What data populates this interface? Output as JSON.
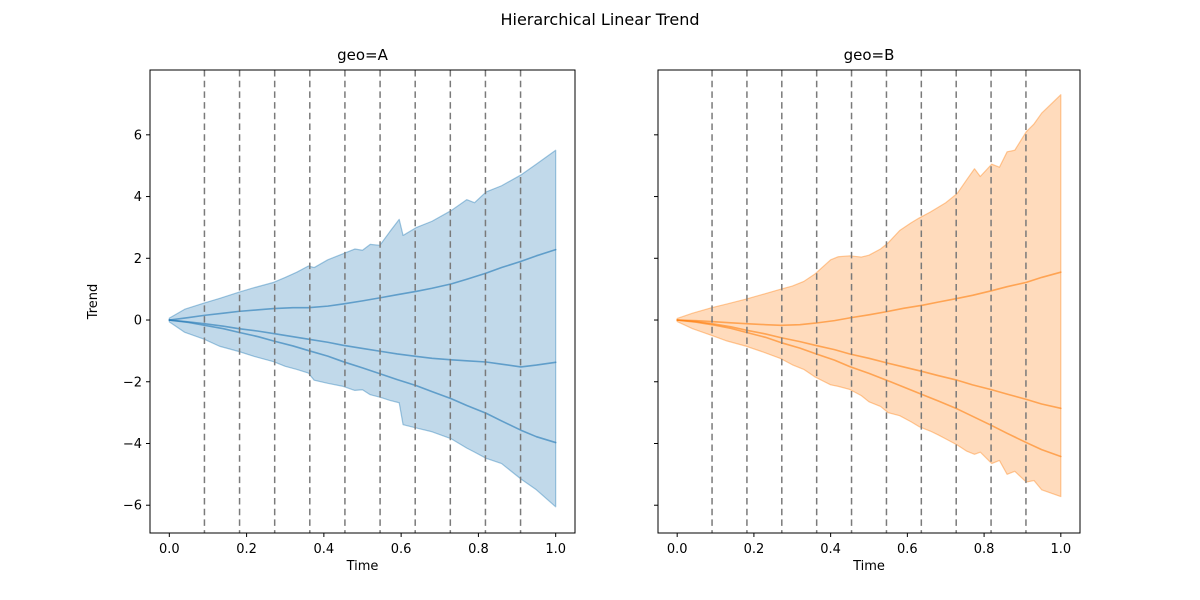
{
  "figure": {
    "title": "Hierarchical Linear Trend",
    "background": "#ffffff"
  },
  "chart_data": [
    {
      "type": "area",
      "title": "geo=A",
      "xlabel": "Time",
      "ylabel": "Trend",
      "series_color": "#1f77b4",
      "band_fill_alpha": 0.28,
      "band_edge_alpha": 0.4,
      "line_alpha": 0.6,
      "grid": {
        "style": "dashed-vertical",
        "color": "#7a7a7a"
      },
      "xlim": [
        -0.05,
        1.05
      ],
      "ylim": [
        -6.9,
        8.1
      ],
      "xticks": [
        0.0,
        0.2,
        0.4,
        0.6,
        0.8,
        1.0
      ],
      "xtick_labels": [
        "0.0",
        "0.2",
        "0.4",
        "0.6",
        "0.8",
        "1.0"
      ],
      "yticks": [
        -6,
        -4,
        -2,
        0,
        2,
        4,
        6
      ],
      "ytick_labels": [
        "−6",
        "−4",
        "−2",
        "0",
        "2",
        "4",
        "6"
      ],
      "show_ytick_labels": true,
      "changepoints": [
        0.0909,
        0.1818,
        0.2727,
        0.3636,
        0.4545,
        0.5455,
        0.6364,
        0.7273,
        0.8182,
        0.9091
      ],
      "band": {
        "t": [
          0,
          0.04,
          0.09,
          0.13,
          0.18,
          0.22,
          0.27,
          0.3,
          0.33,
          0.36,
          0.375,
          0.41,
          0.45,
          0.48,
          0.5,
          0.52,
          0.545,
          0.57,
          0.595,
          0.605,
          0.64,
          0.68,
          0.73,
          0.77,
          0.79,
          0.82,
          0.86,
          0.91,
          0.95,
          1.0
        ],
        "upper": [
          0.06,
          0.35,
          0.55,
          0.7,
          0.9,
          1.05,
          1.22,
          1.38,
          1.55,
          1.75,
          1.7,
          1.95,
          2.15,
          2.3,
          2.26,
          2.45,
          2.42,
          2.85,
          3.26,
          2.74,
          3.0,
          3.2,
          3.55,
          3.9,
          3.8,
          4.15,
          4.35,
          4.7,
          5.05,
          5.5
        ],
        "lower": [
          -0.06,
          -0.4,
          -0.62,
          -0.85,
          -1.02,
          -1.18,
          -1.35,
          -1.5,
          -1.6,
          -1.72,
          -1.95,
          -2.05,
          -2.15,
          -2.28,
          -2.26,
          -2.42,
          -2.5,
          -2.6,
          -2.68,
          -3.39,
          -3.5,
          -3.62,
          -3.85,
          -4.15,
          -4.28,
          -4.48,
          -4.65,
          -5.15,
          -5.5,
          -6.05
        ]
      },
      "lines": [
        {
          "name": "draw-1",
          "t": [
            0,
            0.05,
            0.09,
            0.14,
            0.18,
            0.23,
            0.27,
            0.32,
            0.36,
            0.41,
            0.45,
            0.5,
            0.55,
            0.59,
            0.64,
            0.68,
            0.73,
            0.77,
            0.82,
            0.86,
            0.91,
            0.95,
            1.0
          ],
          "y": [
            0,
            0.08,
            0.15,
            0.22,
            0.28,
            0.33,
            0.37,
            0.4,
            0.4,
            0.45,
            0.52,
            0.62,
            0.73,
            0.82,
            0.93,
            1.03,
            1.17,
            1.32,
            1.52,
            1.7,
            1.9,
            2.08,
            2.28
          ]
        },
        {
          "name": "draw-2",
          "t": [
            0,
            0.05,
            0.09,
            0.14,
            0.18,
            0.23,
            0.27,
            0.32,
            0.36,
            0.41,
            0.45,
            0.5,
            0.55,
            0.59,
            0.64,
            0.68,
            0.73,
            0.77,
            0.82,
            0.86,
            0.91,
            0.95,
            1.0
          ],
          "y": [
            0,
            -0.06,
            -0.12,
            -0.2,
            -0.28,
            -0.36,
            -0.44,
            -0.54,
            -0.62,
            -0.72,
            -0.82,
            -0.92,
            -1.02,
            -1.1,
            -1.18,
            -1.24,
            -1.29,
            -1.32,
            -1.36,
            -1.43,
            -1.52,
            -1.46,
            -1.37
          ]
        },
        {
          "name": "draw-3",
          "t": [
            0,
            0.05,
            0.09,
            0.14,
            0.18,
            0.23,
            0.27,
            0.32,
            0.36,
            0.41,
            0.45,
            0.5,
            0.55,
            0.59,
            0.64,
            0.68,
            0.73,
            0.77,
            0.82,
            0.86,
            0.91,
            0.95,
            1.0
          ],
          "y": [
            0,
            -0.08,
            -0.17,
            -0.28,
            -0.4,
            -0.54,
            -0.68,
            -0.84,
            -0.99,
            -1.17,
            -1.35,
            -1.55,
            -1.76,
            -1.93,
            -2.13,
            -2.32,
            -2.55,
            -2.77,
            -3.02,
            -3.27,
            -3.57,
            -3.78,
            -3.97
          ]
        }
      ]
    },
    {
      "type": "area",
      "title": "geo=B",
      "xlabel": "Time",
      "ylabel": "",
      "series_color": "#ff7f0e",
      "band_fill_alpha": 0.28,
      "band_edge_alpha": 0.4,
      "line_alpha": 0.6,
      "grid": {
        "style": "dashed-vertical",
        "color": "#7a7a7a"
      },
      "xlim": [
        -0.05,
        1.05
      ],
      "ylim": [
        -6.9,
        8.1
      ],
      "xticks": [
        0.0,
        0.2,
        0.4,
        0.6,
        0.8,
        1.0
      ],
      "xtick_labels": [
        "0.0",
        "0.2",
        "0.4",
        "0.6",
        "0.8",
        "1.0"
      ],
      "yticks": [
        -6,
        -4,
        -2,
        0,
        2,
        4,
        6
      ],
      "ytick_labels": [
        "−6",
        "−4",
        "−2",
        "0",
        "2",
        "4",
        "6"
      ],
      "show_ytick_labels": false,
      "changepoints": [
        0.0909,
        0.1818,
        0.2727,
        0.3636,
        0.4545,
        0.5455,
        0.6364,
        0.7273,
        0.8182,
        0.9091
      ],
      "band": {
        "t": [
          0,
          0.04,
          0.09,
          0.13,
          0.18,
          0.22,
          0.27,
          0.3,
          0.33,
          0.36,
          0.4,
          0.42,
          0.45,
          0.48,
          0.5,
          0.53,
          0.55,
          0.58,
          0.61,
          0.63,
          0.66,
          0.68,
          0.7,
          0.73,
          0.755,
          0.775,
          0.79,
          0.82,
          0.84,
          0.86,
          0.88,
          0.91,
          0.93,
          0.95,
          1.0
        ],
        "upper": [
          0.05,
          0.22,
          0.4,
          0.52,
          0.68,
          0.82,
          1.0,
          1.1,
          1.25,
          1.5,
          1.95,
          2.05,
          2.08,
          2.04,
          2.1,
          2.3,
          2.5,
          2.9,
          3.15,
          3.3,
          3.5,
          3.65,
          3.8,
          4.1,
          4.55,
          4.9,
          4.65,
          5.05,
          4.95,
          5.45,
          5.5,
          6.1,
          6.35,
          6.7,
          7.3
        ],
        "lower": [
          -0.05,
          -0.28,
          -0.5,
          -0.68,
          -0.85,
          -1.02,
          -1.25,
          -1.45,
          -1.6,
          -1.85,
          -2.1,
          -2.15,
          -2.25,
          -2.45,
          -2.65,
          -2.8,
          -3.0,
          -3.1,
          -3.3,
          -3.45,
          -3.6,
          -3.72,
          -3.85,
          -4.05,
          -4.25,
          -4.35,
          -4.28,
          -4.65,
          -4.55,
          -5.0,
          -4.9,
          -5.25,
          -5.2,
          -5.5,
          -5.72
        ]
      },
      "lines": [
        {
          "name": "draw-1",
          "t": [
            0,
            0.05,
            0.09,
            0.14,
            0.18,
            0.23,
            0.27,
            0.32,
            0.36,
            0.41,
            0.45,
            0.5,
            0.55,
            0.59,
            0.64,
            0.68,
            0.73,
            0.77,
            0.82,
            0.86,
            0.91,
            0.95,
            1.0
          ],
          "y": [
            0,
            -0.02,
            -0.05,
            -0.09,
            -0.12,
            -0.15,
            -0.17,
            -0.15,
            -0.1,
            -0.02,
            0.07,
            0.17,
            0.28,
            0.38,
            0.48,
            0.58,
            0.7,
            0.8,
            0.95,
            1.08,
            1.22,
            1.38,
            1.55
          ]
        },
        {
          "name": "draw-2",
          "t": [
            0,
            0.05,
            0.09,
            0.14,
            0.18,
            0.23,
            0.27,
            0.32,
            0.36,
            0.41,
            0.45,
            0.5,
            0.55,
            0.59,
            0.64,
            0.68,
            0.73,
            0.77,
            0.82,
            0.86,
            0.91,
            0.95,
            1.0
          ],
          "y": [
            0,
            -0.05,
            -0.12,
            -0.22,
            -0.33,
            -0.45,
            -0.57,
            -0.7,
            -0.82,
            -0.96,
            -1.1,
            -1.24,
            -1.4,
            -1.52,
            -1.67,
            -1.8,
            -1.95,
            -2.1,
            -2.26,
            -2.4,
            -2.57,
            -2.72,
            -2.86
          ]
        },
        {
          "name": "draw-3",
          "t": [
            0,
            0.05,
            0.09,
            0.14,
            0.18,
            0.23,
            0.27,
            0.32,
            0.36,
            0.41,
            0.45,
            0.5,
            0.55,
            0.59,
            0.64,
            0.68,
            0.73,
            0.77,
            0.82,
            0.86,
            0.91,
            0.95,
            1.0
          ],
          "y": [
            0,
            -0.07,
            -0.15,
            -0.27,
            -0.4,
            -0.56,
            -0.73,
            -0.91,
            -1.09,
            -1.3,
            -1.51,
            -1.73,
            -1.97,
            -2.17,
            -2.42,
            -2.62,
            -2.88,
            -3.12,
            -3.42,
            -3.67,
            -3.97,
            -4.2,
            -4.42
          ]
        }
      ]
    }
  ]
}
